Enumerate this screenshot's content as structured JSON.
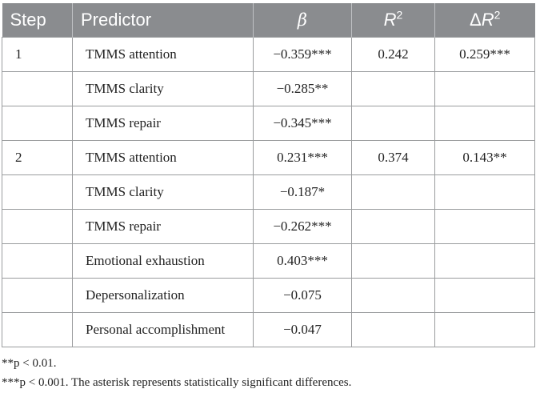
{
  "table": {
    "headers": {
      "step": "Step",
      "predictor": "Predictor",
      "beta": "β",
      "r2_base": "R",
      "r2_sup": "2",
      "dr2_prefix": "Δ",
      "dr2_base": "R",
      "dr2_sup": "2"
    },
    "rows": [
      {
        "step": "1",
        "predictor": "TMMS attention",
        "beta": "−0.359***",
        "r2": "0.242",
        "dr2": "0.259***"
      },
      {
        "step": "",
        "predictor": "TMMS clarity",
        "beta": "−0.285**",
        "r2": "",
        "dr2": ""
      },
      {
        "step": "",
        "predictor": "TMMS repair",
        "beta": "−0.345***",
        "r2": "",
        "dr2": ""
      },
      {
        "step": "2",
        "predictor": "TMMS attention",
        "beta": "0.231***",
        "r2": "0.374",
        "dr2": "0.143**"
      },
      {
        "step": "",
        "predictor": "TMMS clarity",
        "beta": "−0.187*",
        "r2": "",
        "dr2": ""
      },
      {
        "step": "",
        "predictor": "TMMS repair",
        "beta": "−0.262***",
        "r2": "",
        "dr2": ""
      },
      {
        "step": "",
        "predictor": "Emotional exhaustion",
        "beta": "0.403***",
        "r2": "",
        "dr2": ""
      },
      {
        "step": "",
        "predictor": "Depersonalization",
        "beta": "−0.075",
        "r2": "",
        "dr2": ""
      },
      {
        "step": "",
        "predictor": "Personal accomplishment",
        "beta": "−0.047",
        "r2": "",
        "dr2": ""
      }
    ]
  },
  "notes": [
    "**p < 0.01.",
    "***p < 0.001. The asterisk represents statistically significant differences."
  ]
}
